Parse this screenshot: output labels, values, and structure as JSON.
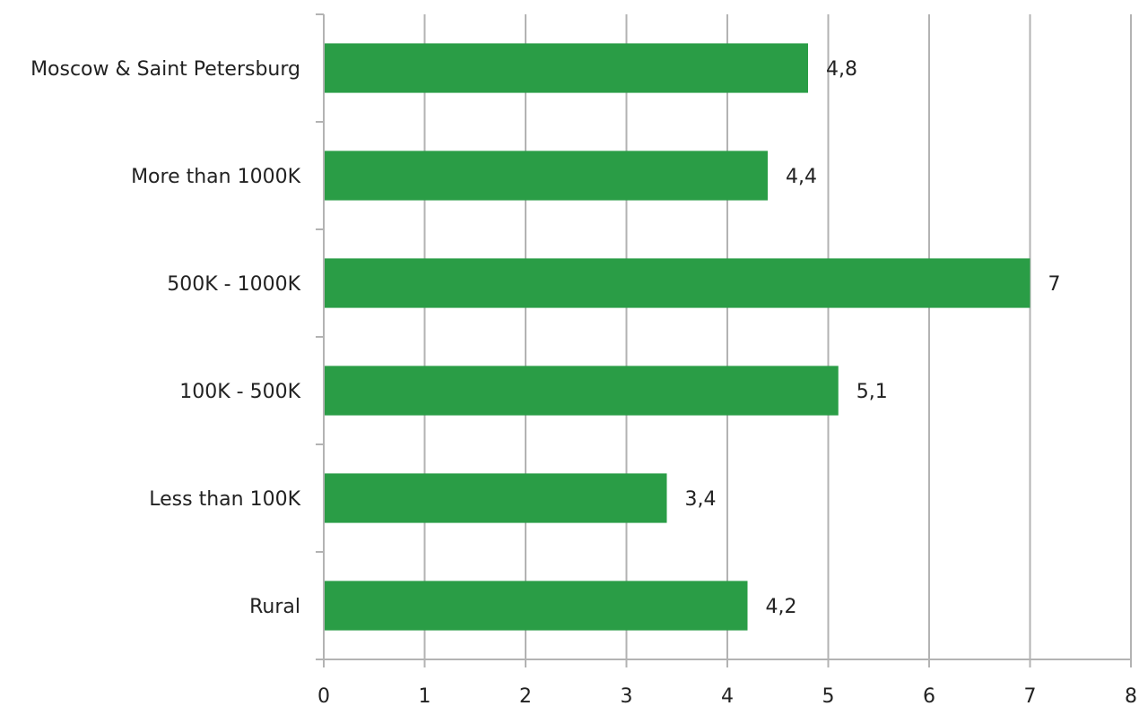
{
  "chart_data": {
    "type": "bar",
    "orientation": "horizontal",
    "categories": [
      "Moscow & Saint Petersburg",
      "More than 1000K",
      "500K - 1000K",
      "100K - 500K",
      "Less than 100K",
      "Rural"
    ],
    "values": [
      4.8,
      4.4,
      7,
      5.1,
      3.4,
      4.2
    ],
    "data_labels": [
      "4,8",
      "4,4",
      "7",
      "5,1",
      "3,4",
      "4,2"
    ],
    "x_ticks": [
      "0",
      "1",
      "2",
      "3",
      "4",
      "5",
      "6",
      "7",
      "8"
    ],
    "xlim": [
      0,
      8
    ],
    "grid": true,
    "legend": "none",
    "colors": {
      "bar": "#2a9d46",
      "grid": "#b3b3b3",
      "text": "#222222"
    }
  }
}
